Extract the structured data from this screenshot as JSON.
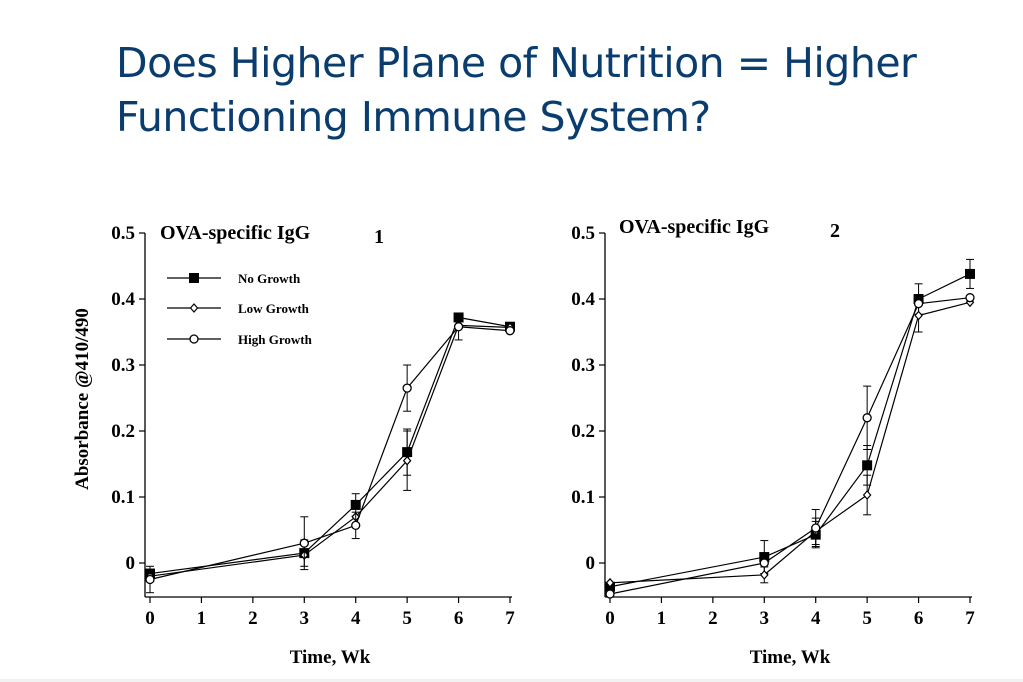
{
  "slide": {
    "title_line1": "Does Higher Plane of Nutrition = Higher",
    "title_line2": "Functioning Immune System?",
    "title_color": "#0a3d6e"
  },
  "chart_data": [
    {
      "type": "line",
      "title": "OVA-specific IgG",
      "panel_label": "1",
      "xlabel": "Time, Wk",
      "ylabel": "Absorbance @410/490",
      "x_ticks": [
        "0",
        "1",
        "2",
        "3",
        "4",
        "5",
        "6",
        "7"
      ],
      "y_ticks": [
        "0",
        "0.1",
        "0.2",
        "0.3",
        "0.4",
        "0.5"
      ],
      "xlim": [
        0,
        7
      ],
      "ylim": [
        -0.05,
        0.5
      ],
      "legend": "top-left",
      "grid": false,
      "series": [
        {
          "name": "No Growth",
          "marker": "filled-square",
          "x": [
            0,
            3,
            4,
            5,
            6,
            7
          ],
          "y": [
            -0.016,
            0.015,
            0.088,
            0.168,
            0.372,
            0.358
          ],
          "err": [
            0.0,
            0.02,
            0.017,
            0.035,
            0.0,
            0.0
          ]
        },
        {
          "name": "Low Growth",
          "marker": "open-diamond",
          "x": [
            0,
            3,
            4,
            5,
            6,
            7
          ],
          "y": [
            -0.02,
            0.012,
            0.07,
            0.155,
            0.36,
            0.357
          ],
          "err": [
            0.0,
            0.0,
            0.0,
            0.045,
            0.0,
            0.0
          ]
        },
        {
          "name": "High Growth",
          "marker": "open-circle",
          "x": [
            0,
            3,
            4,
            5,
            6,
            7
          ],
          "y": [
            -0.025,
            0.03,
            0.057,
            0.265,
            0.358,
            0.352
          ],
          "err": [
            0.02,
            0.04,
            0.02,
            0.035,
            0.02,
            0.0
          ]
        }
      ]
    },
    {
      "type": "line",
      "title": "OVA-specific IgG",
      "panel_label": "2",
      "xlabel": "Time, Wk",
      "ylabel": "",
      "x_ticks": [
        "0",
        "1",
        "2",
        "3",
        "4",
        "5",
        "6",
        "7"
      ],
      "y_ticks": [
        "0",
        "0.1",
        "0.2",
        "0.3",
        "0.4",
        "0.5"
      ],
      "xlim": [
        0,
        7
      ],
      "ylim": [
        -0.05,
        0.5
      ],
      "legend": "none",
      "grid": false,
      "series": [
        {
          "name": "No Growth",
          "marker": "filled-square",
          "x": [
            0,
            3,
            4,
            5,
            6,
            7
          ],
          "y": [
            -0.036,
            0.009,
            0.043,
            0.148,
            0.4,
            0.438
          ],
          "err": [
            0.0,
            0.025,
            0.02,
            0.03,
            0.023,
            0.022
          ]
        },
        {
          "name": "Low Growth",
          "marker": "open-diamond",
          "x": [
            0,
            3,
            4,
            5,
            6,
            7
          ],
          "y": [
            -0.03,
            -0.018,
            0.048,
            0.103,
            0.375,
            0.395
          ],
          "err": [
            0.0,
            0.012,
            0.02,
            0.03,
            0.025,
            0.0
          ]
        },
        {
          "name": "High Growth",
          "marker": "open-circle",
          "x": [
            0,
            3,
            4,
            5,
            6,
            7
          ],
          "y": [
            -0.047,
            0.0,
            0.053,
            0.22,
            0.393,
            0.402
          ],
          "err": [
            0.0,
            0.0,
            0.028,
            0.048,
            0.0,
            0.0
          ]
        }
      ]
    }
  ]
}
